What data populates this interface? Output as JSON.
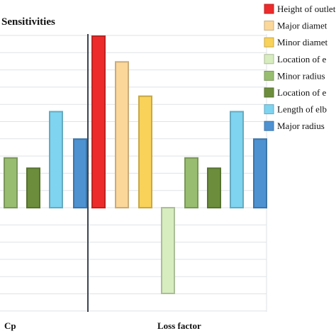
{
  "chart_data": {
    "type": "bar",
    "title": "Sensitivities",
    "groups": [
      "Cp",
      "Loss factor"
    ],
    "ylim": [
      -1.0,
      1.0
    ],
    "grid": true,
    "legend_position": "right",
    "series": [
      {
        "name": "Height of outlet",
        "color": "#ee2b2b",
        "values": [
          null,
          1.0
        ]
      },
      {
        "name": "Major diamet",
        "color": "#fbd79a",
        "values": [
          null,
          0.85
        ]
      },
      {
        "name": "Minor diamet",
        "color": "#f9d25a",
        "values": [
          null,
          0.65
        ]
      },
      {
        "name": "Location of e",
        "color": "#d7ecbf",
        "values": [
          null,
          -0.5
        ]
      },
      {
        "name": "Minor radius",
        "color": "#98bd70",
        "values": [
          0.29,
          0.29
        ]
      },
      {
        "name": "Location of e",
        "color": "#6c8e3c",
        "values": [
          0.23,
          0.23
        ]
      },
      {
        "name": "Length of elb",
        "color": "#7fd4f0",
        "values": [
          0.56,
          0.56
        ]
      },
      {
        "name": "Major radius",
        "color": "#4e92d2",
        "values": [
          0.4,
          0.4
        ]
      }
    ]
  }
}
